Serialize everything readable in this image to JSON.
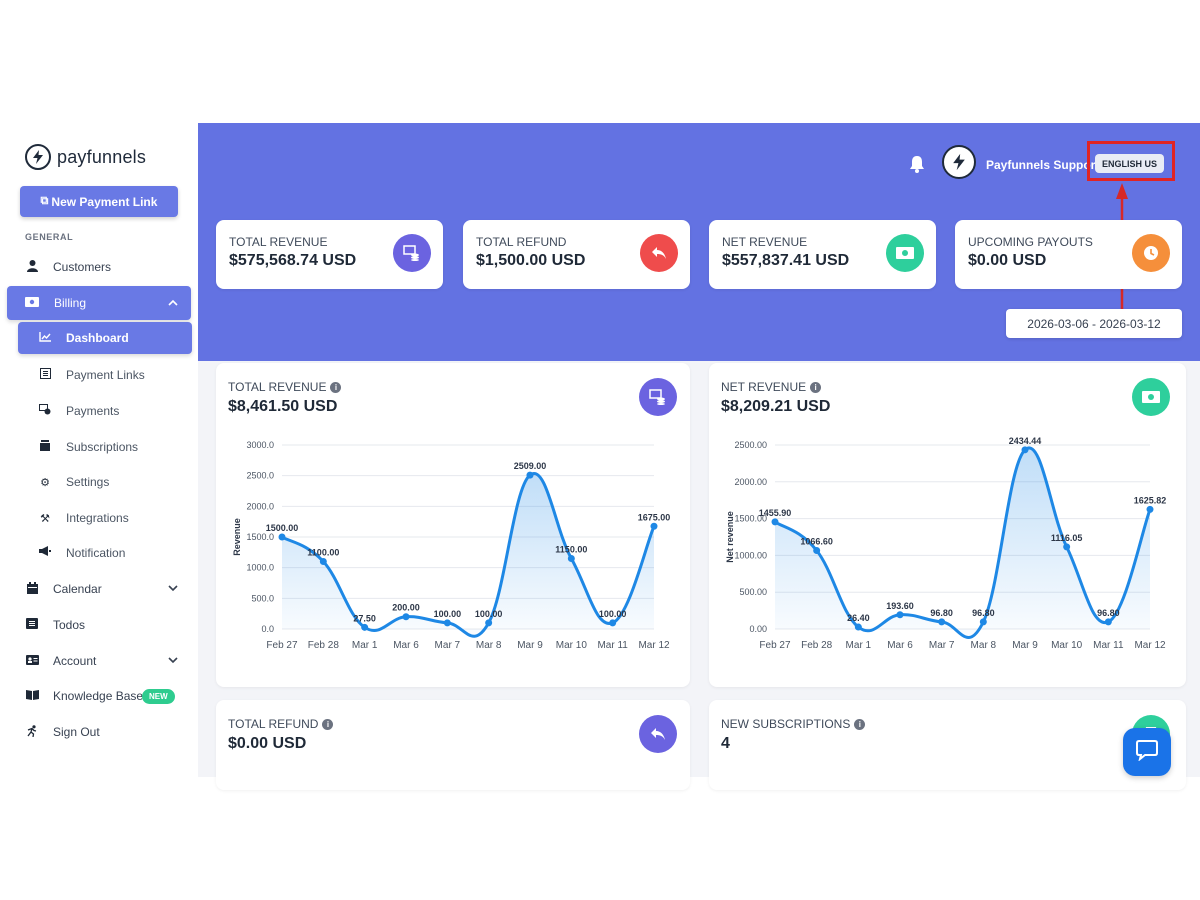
{
  "brand": {
    "name": "payfunnels"
  },
  "sidebar": {
    "new_link_label": "New Payment Link",
    "section_label": "GENERAL",
    "items": {
      "customers": "Customers",
      "billing": "Billing",
      "dashboard": "Dashboard",
      "payment_links": "Payment Links",
      "payments": "Payments",
      "subscriptions": "Subscriptions",
      "settings": "Settings",
      "integrations": "Integrations",
      "notification": "Notification",
      "calendar": "Calendar",
      "todos": "Todos",
      "account": "Account",
      "knowledge_base": "Knowledge Base",
      "sign_out": "Sign Out"
    },
    "new_badge": "NEW"
  },
  "header": {
    "support_name": "Payfunnels Support",
    "language": "ENGLISH US",
    "date_range": "2026-03-06 - 2026-03-12"
  },
  "stats": [
    {
      "label": "TOTAL REVENUE",
      "value": "$575,568.74 USD",
      "color": "#6b63e0",
      "icon": "coins-icon"
    },
    {
      "label": "TOTAL REFUND",
      "value": "$1,500.00 USD",
      "color": "#ef4c4c",
      "icon": "refund-icon"
    },
    {
      "label": "NET REVENUE",
      "value": "$557,837.41 USD",
      "color": "#2ecf9c",
      "icon": "cash-icon"
    },
    {
      "label": "UPCOMING PAYOUTS",
      "value": "$0.00 USD",
      "color": "#f58f3b",
      "icon": "clock-icon"
    }
  ],
  "cards": {
    "total_revenue": {
      "title": "TOTAL REVENUE",
      "value": "$8,461.50 USD"
    },
    "net_revenue": {
      "title": "NET REVENUE",
      "value": "$8,209.21 USD"
    },
    "total_refund": {
      "title": "TOTAL REFUND",
      "value": "$0.00 USD"
    },
    "new_subscriptions": {
      "title": "NEW SUBSCRIPTIONS",
      "value": "4"
    }
  },
  "chart_data": [
    {
      "type": "area",
      "categories": [
        "Feb 27",
        "Feb 28",
        "Mar 1",
        "Mar 6",
        "Mar 7",
        "Mar 8",
        "Mar 9",
        "Mar 10",
        "Mar 11",
        "Mar 12"
      ],
      "values": [
        1500.0,
        1100.0,
        27.5,
        200.0,
        100.0,
        100.0,
        2509.0,
        1150.0,
        100.0,
        1675.0
      ],
      "labels": [
        "1500.00",
        "1100.00",
        "27.50",
        "200.00",
        "100.00",
        "100.00",
        "2509.00",
        "1150.00",
        "100.00",
        "1675.00"
      ],
      "ylabel": "Revenue",
      "ylim": [
        0,
        3000
      ],
      "yticks": [
        "0.0",
        "500.0",
        "1000.0",
        "1500.0",
        "2000.0",
        "2500.0",
        "3000.0"
      ],
      "color": "#1e88e5",
      "grid": true
    },
    {
      "type": "area",
      "categories": [
        "Feb 27",
        "Feb 28",
        "Mar 1",
        "Mar 6",
        "Mar 7",
        "Mar 8",
        "Mar 9",
        "Mar 10",
        "Mar 11",
        "Mar 12"
      ],
      "values": [
        1455.9,
        1066.6,
        26.4,
        193.6,
        96.8,
        96.8,
        2434.44,
        1116.05,
        96.8,
        1625.82
      ],
      "labels": [
        "1455.90",
        "1066.60",
        "26.40",
        "193.60",
        "96.80",
        "96.80",
        "2434.44",
        "1116.05",
        "96.80",
        "1625.82"
      ],
      "ylabel": "Net revenue",
      "ylim": [
        0,
        2500
      ],
      "yticks": [
        "0.00",
        "500.00",
        "1000.00",
        "1500.00",
        "2000.00",
        "2500.00"
      ],
      "color": "#1e88e5",
      "grid": true
    }
  ]
}
